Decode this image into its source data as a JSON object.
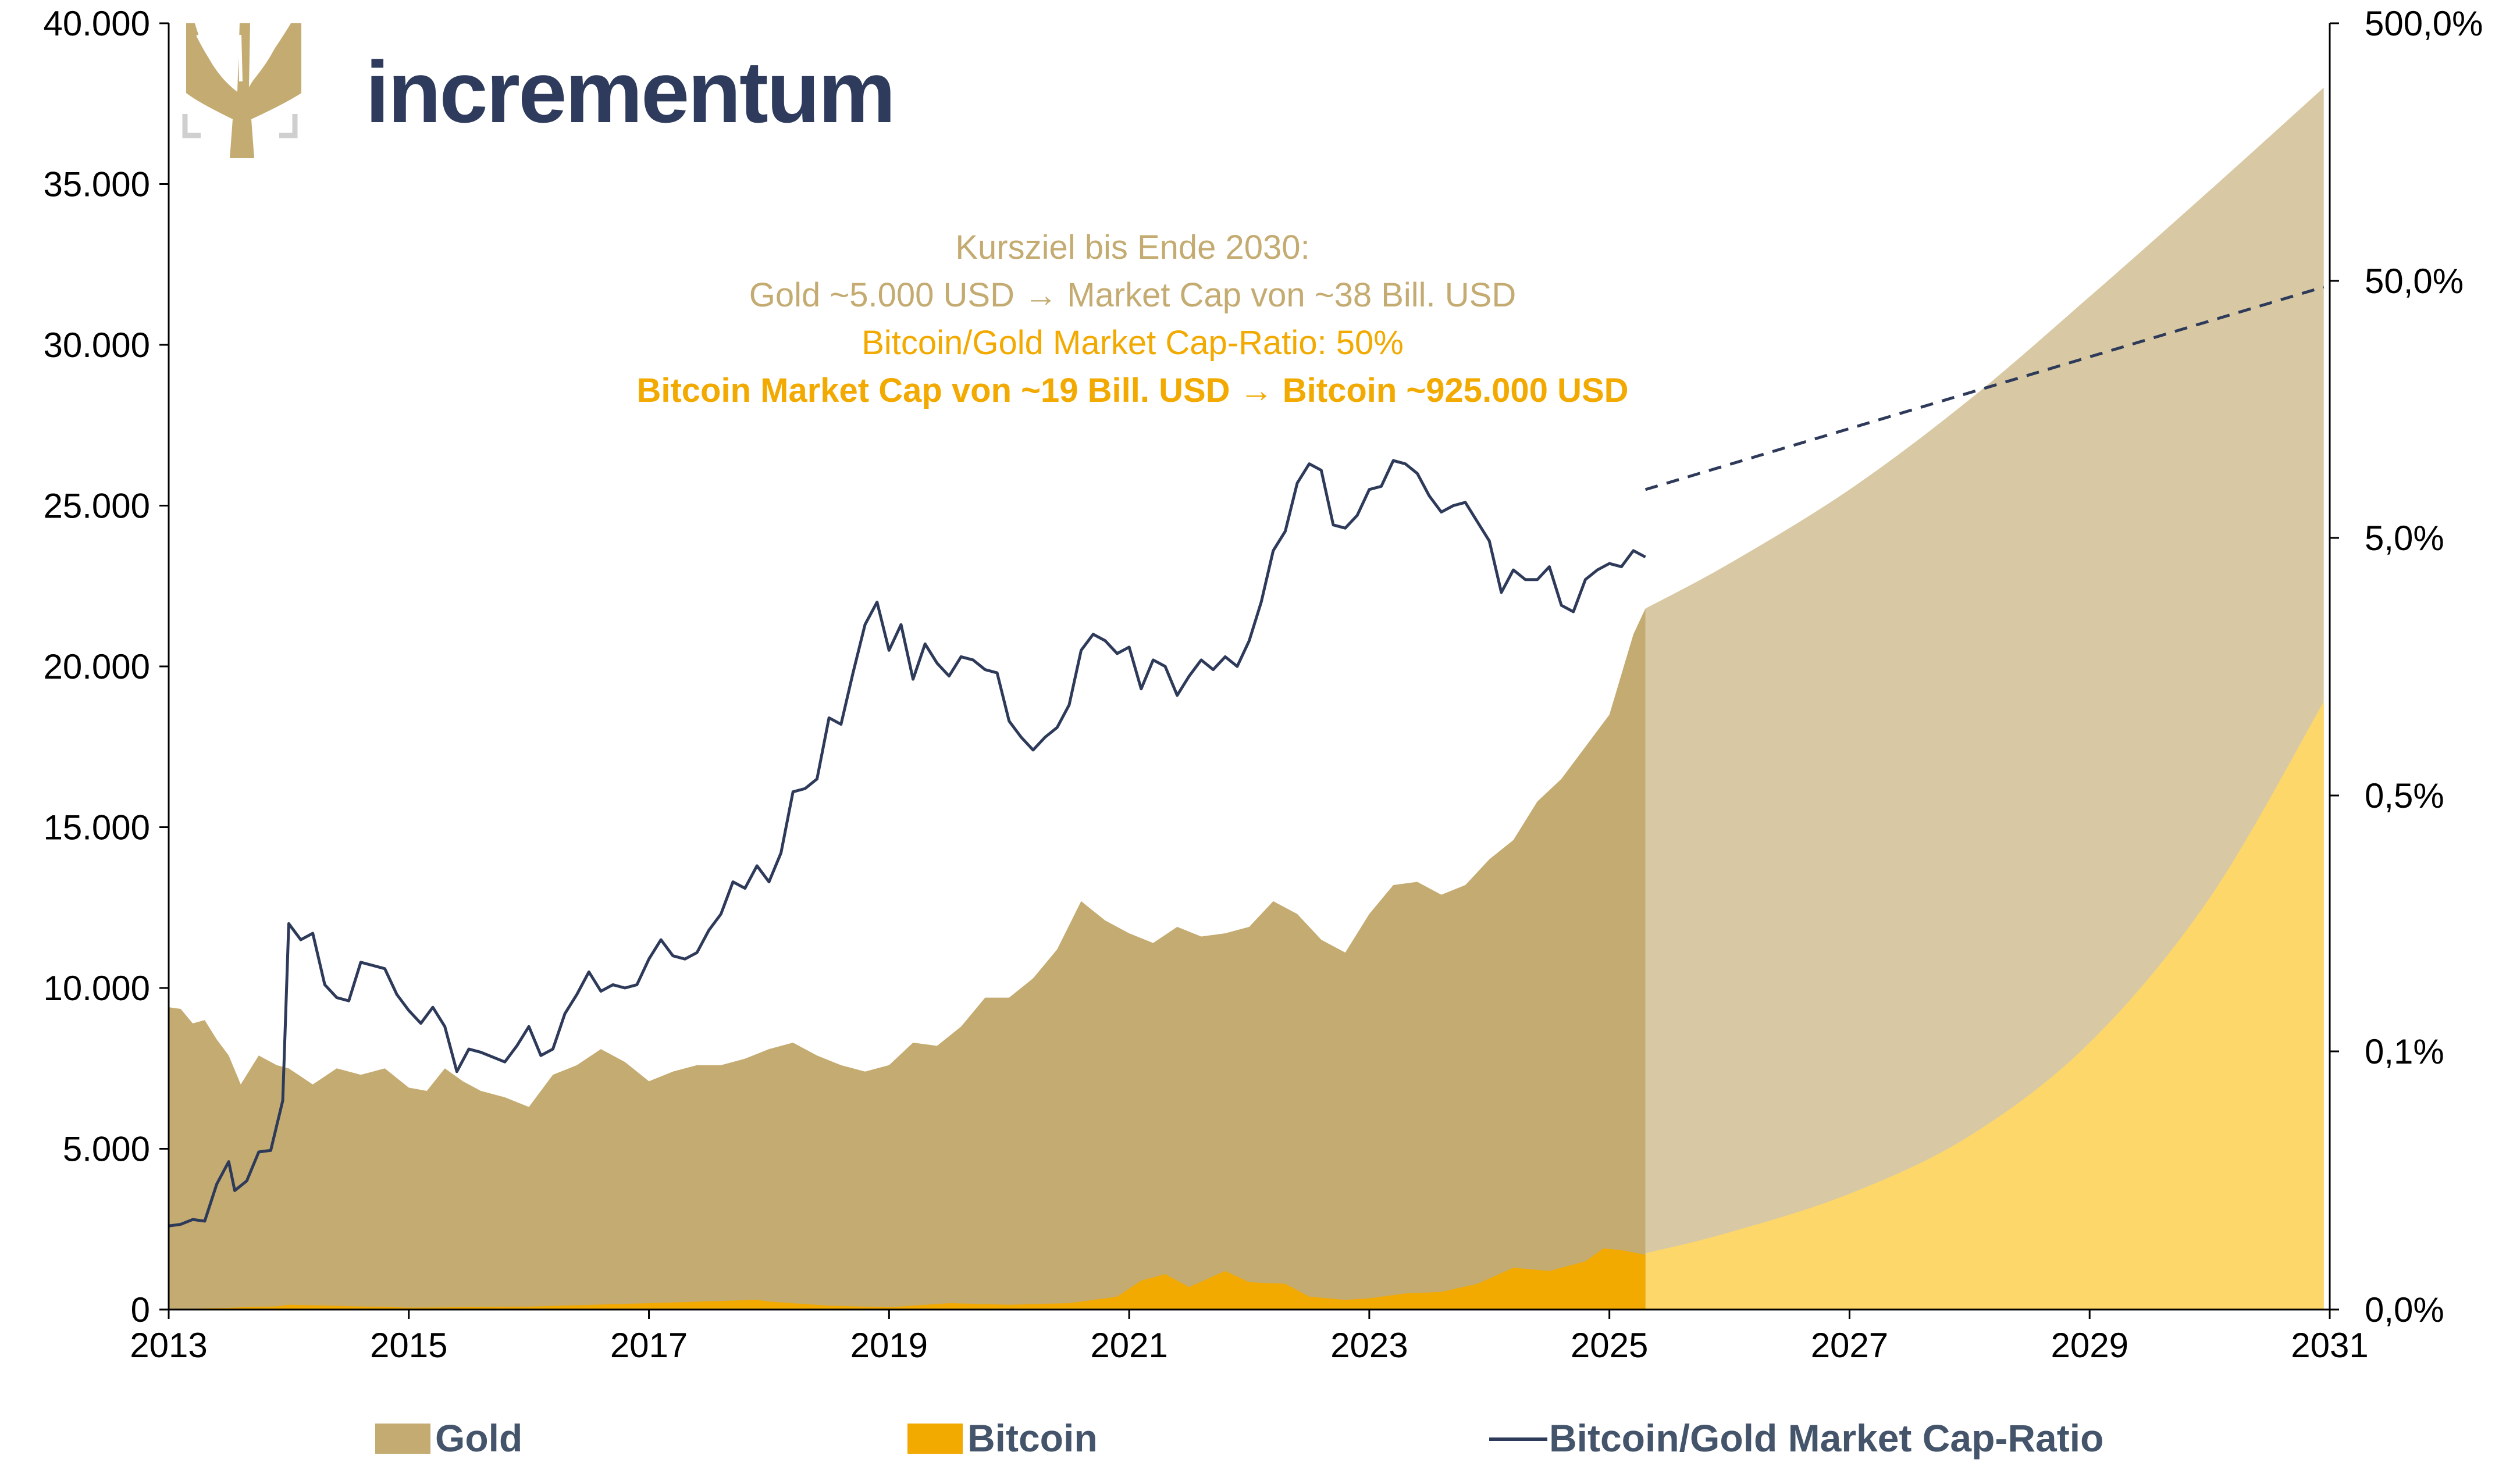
{
  "logo": {
    "text": "incrementum"
  },
  "colors": {
    "gold": "#c4ab71",
    "gold_forecast": "#d8c9a4",
    "bitcoin": "#f2a900",
    "bitcoin_forecast": "#fdd76a",
    "ratio": "#2e3a59",
    "annotation_gold": "#c4ab71",
    "annotation_bitcoin": "#f2a900",
    "legend_text": "#44546a"
  },
  "annotation": {
    "line1": "Kursziel bis Ende 2030:",
    "line2": "Gold ~5.000 USD → Market Cap von ~38 Bill. USD",
    "line3": "Bitcoin/Gold Market Cap-Ratio: 50%",
    "line4": "Bitcoin Market Cap von ~19 Bill. USD → Bitcoin ~925.000 USD"
  },
  "legend": {
    "gold": "Gold",
    "bitcoin": "Bitcoin",
    "ratio": "Bitcoin/Gold Market Cap-Ratio"
  },
  "chart_data": {
    "type": "area",
    "x_axis": {
      "min": 2013,
      "max": 2031,
      "ticks": [
        "2013",
        "2015",
        "2017",
        "2019",
        "2021",
        "2023",
        "2025",
        "2027",
        "2029",
        "2031"
      ]
    },
    "y_left": {
      "min": 0,
      "max": 40000,
      "ticks": [
        "0",
        "5.000",
        "10.000",
        "15.000",
        "20.000",
        "25.000",
        "30.000",
        "35.000",
        "40.000"
      ]
    },
    "y_right": {
      "scale": "log",
      "ticks": [
        "0,0%",
        "0,1%",
        "0,5%",
        "5,0%",
        "50,0%",
        "500,0%"
      ]
    },
    "forecast_start": 2025.3,
    "series": [
      {
        "name": "Gold",
        "axis": "left",
        "points": [
          [
            2013.0,
            9400
          ],
          [
            2013.1,
            9350
          ],
          [
            2013.2,
            8900
          ],
          [
            2013.3,
            9000
          ],
          [
            2013.4,
            8400
          ],
          [
            2013.5,
            7900
          ],
          [
            2013.6,
            7000
          ],
          [
            2013.75,
            7900
          ],
          [
            2013.9,
            7600
          ],
          [
            2014.0,
            7500
          ],
          [
            2014.2,
            7000
          ],
          [
            2014.4,
            7500
          ],
          [
            2014.6,
            7300
          ],
          [
            2014.8,
            7500
          ],
          [
            2015.0,
            6900
          ],
          [
            2015.15,
            6800
          ],
          [
            2015.3,
            7500
          ],
          [
            2015.45,
            7100
          ],
          [
            2015.6,
            6800
          ],
          [
            2015.8,
            6600
          ],
          [
            2016.0,
            6300
          ],
          [
            2016.2,
            7300
          ],
          [
            2016.4,
            7600
          ],
          [
            2016.6,
            8100
          ],
          [
            2016.8,
            7700
          ],
          [
            2017.0,
            7100
          ],
          [
            2017.2,
            7400
          ],
          [
            2017.4,
            7600
          ],
          [
            2017.6,
            7600
          ],
          [
            2017.8,
            7800
          ],
          [
            2018.0,
            8100
          ],
          [
            2018.2,
            8300
          ],
          [
            2018.4,
            7900
          ],
          [
            2018.6,
            7600
          ],
          [
            2018.8,
            7400
          ],
          [
            2019.0,
            7600
          ],
          [
            2019.2,
            8300
          ],
          [
            2019.4,
            8200
          ],
          [
            2019.6,
            8800
          ],
          [
            2019.8,
            9700
          ],
          [
            2020.0,
            9700
          ],
          [
            2020.2,
            10300
          ],
          [
            2020.4,
            11200
          ],
          [
            2020.6,
            12700
          ],
          [
            2020.8,
            12100
          ],
          [
            2021.0,
            11700
          ],
          [
            2021.2,
            11400
          ],
          [
            2021.4,
            11900
          ],
          [
            2021.6,
            11600
          ],
          [
            2021.8,
            11700
          ],
          [
            2022.0,
            11900
          ],
          [
            2022.2,
            12700
          ],
          [
            2022.4,
            12300
          ],
          [
            2022.6,
            11500
          ],
          [
            2022.8,
            11100
          ],
          [
            2023.0,
            12300
          ],
          [
            2023.2,
            13200
          ],
          [
            2023.4,
            13300
          ],
          [
            2023.6,
            12900
          ],
          [
            2023.8,
            13200
          ],
          [
            2024.0,
            14000
          ],
          [
            2024.2,
            14600
          ],
          [
            2024.4,
            15800
          ],
          [
            2024.6,
            16500
          ],
          [
            2024.8,
            17500
          ],
          [
            2025.0,
            18500
          ],
          [
            2025.2,
            21000
          ],
          [
            2025.3,
            21800
          ]
        ]
      },
      {
        "name": "Bitcoin",
        "axis": "left",
        "points": [
          [
            2013.0,
            0
          ],
          [
            2013.9,
            100
          ],
          [
            2014.0,
            150
          ],
          [
            2015.0,
            60
          ],
          [
            2016.0,
            90
          ],
          [
            2017.0,
            200
          ],
          [
            2017.9,
            300
          ],
          [
            2018.0,
            250
          ],
          [
            2018.5,
            120
          ],
          [
            2019.0,
            70
          ],
          [
            2019.5,
            200
          ],
          [
            2020.0,
            150
          ],
          [
            2020.5,
            200
          ],
          [
            2020.9,
            400
          ],
          [
            2021.1,
            900
          ],
          [
            2021.3,
            1100
          ],
          [
            2021.5,
            700
          ],
          [
            2021.8,
            1200
          ],
          [
            2022.0,
            850
          ],
          [
            2022.3,
            800
          ],
          [
            2022.5,
            400
          ],
          [
            2022.8,
            300
          ],
          [
            2023.0,
            350
          ],
          [
            2023.3,
            500
          ],
          [
            2023.6,
            550
          ],
          [
            2023.9,
            800
          ],
          [
            2024.2,
            1300
          ],
          [
            2024.5,
            1200
          ],
          [
            2024.8,
            1500
          ],
          [
            2024.95,
            1900
          ],
          [
            2025.1,
            1850
          ],
          [
            2025.3,
            1700
          ]
        ]
      },
      {
        "name": "Gold Forecast",
        "axis": "left",
        "points": [
          [
            2025.3,
            21800
          ],
          [
            2026.0,
            23200
          ],
          [
            2027.0,
            25500
          ],
          [
            2028.0,
            28300
          ],
          [
            2029.0,
            31500
          ],
          [
            2030.0,
            34800
          ],
          [
            2030.95,
            38000
          ]
        ]
      },
      {
        "name": "Bitcoin Forecast",
        "axis": "left",
        "points": [
          [
            2025.3,
            1750
          ],
          [
            2026.0,
            2400
          ],
          [
            2027.0,
            3600
          ],
          [
            2028.0,
            5400
          ],
          [
            2029.0,
            8300
          ],
          [
            2030.0,
            12800
          ],
          [
            2030.95,
            18900
          ]
        ]
      },
      {
        "name": "Bitcoin/Gold Market Cap-Ratio",
        "axis": "right",
        "points": [
          [
            2013.0,
            2600
          ],
          [
            2013.1,
            2650
          ],
          [
            2013.2,
            2800
          ],
          [
            2013.3,
            2750
          ],
          [
            2013.4,
            3900
          ],
          [
            2013.5,
            4600
          ],
          [
            2013.55,
            3700
          ],
          [
            2013.65,
            4000
          ],
          [
            2013.75,
            4900
          ],
          [
            2013.85,
            4950
          ],
          [
            2013.95,
            6500
          ],
          [
            2014.0,
            12000
          ],
          [
            2014.1,
            11500
          ],
          [
            2014.2,
            11700
          ],
          [
            2014.3,
            10100
          ],
          [
            2014.4,
            9700
          ],
          [
            2014.5,
            9600
          ],
          [
            2014.6,
            10800
          ],
          [
            2014.8,
            10600
          ],
          [
            2014.9,
            9800
          ],
          [
            2015.0,
            9300
          ],
          [
            2015.1,
            8900
          ],
          [
            2015.2,
            9400
          ],
          [
            2015.3,
            8800
          ],
          [
            2015.4,
            7400
          ],
          [
            2015.5,
            8100
          ],
          [
            2015.6,
            8000
          ],
          [
            2015.8,
            7700
          ],
          [
            2015.9,
            8200
          ],
          [
            2016.0,
            8800
          ],
          [
            2016.1,
            7900
          ],
          [
            2016.2,
            8100
          ],
          [
            2016.3,
            9200
          ],
          [
            2016.4,
            9800
          ],
          [
            2016.5,
            10500
          ],
          [
            2016.6,
            9900
          ],
          [
            2016.7,
            10100
          ],
          [
            2016.8,
            10000
          ],
          [
            2016.9,
            10100
          ],
          [
            2017.0,
            10900
          ],
          [
            2017.1,
            11500
          ],
          [
            2017.2,
            11000
          ],
          [
            2017.3,
            10900
          ],
          [
            2017.4,
            11100
          ],
          [
            2017.5,
            11800
          ],
          [
            2017.6,
            12300
          ],
          [
            2017.7,
            13300
          ],
          [
            2017.8,
            13100
          ],
          [
            2017.9,
            13800
          ],
          [
            2018.0,
            13300
          ],
          [
            2018.1,
            14200
          ],
          [
            2018.2,
            16100
          ],
          [
            2018.3,
            16200
          ],
          [
            2018.4,
            16500
          ],
          [
            2018.5,
            18400
          ],
          [
            2018.6,
            18200
          ],
          [
            2018.7,
            19800
          ],
          [
            2018.8,
            21300
          ],
          [
            2018.9,
            22000
          ],
          [
            2019.0,
            20500
          ],
          [
            2019.1,
            21300
          ],
          [
            2019.2,
            19600
          ],
          [
            2019.3,
            20700
          ],
          [
            2019.4,
            20100
          ],
          [
            2019.5,
            19700
          ],
          [
            2019.6,
            20300
          ],
          [
            2019.7,
            20200
          ],
          [
            2019.8,
            19900
          ],
          [
            2019.9,
            19800
          ],
          [
            2020.0,
            18300
          ],
          [
            2020.1,
            17800
          ],
          [
            2020.2,
            17400
          ],
          [
            2020.3,
            17800
          ],
          [
            2020.4,
            18100
          ],
          [
            2020.5,
            18800
          ],
          [
            2020.6,
            20500
          ],
          [
            2020.7,
            21000
          ],
          [
            2020.8,
            20800
          ],
          [
            2020.9,
            20400
          ],
          [
            2021.0,
            20600
          ],
          [
            2021.1,
            19300
          ],
          [
            2021.2,
            20200
          ],
          [
            2021.3,
            20000
          ],
          [
            2021.4,
            19100
          ],
          [
            2021.5,
            19700
          ],
          [
            2021.6,
            20200
          ],
          [
            2021.7,
            19900
          ],
          [
            2021.8,
            20300
          ],
          [
            2021.9,
            20000
          ],
          [
            2022.0,
            20800
          ],
          [
            2022.1,
            22000
          ],
          [
            2022.2,
            23600
          ],
          [
            2022.3,
            24200
          ],
          [
            2022.4,
            25700
          ],
          [
            2022.5,
            26300
          ],
          [
            2022.6,
            26100
          ],
          [
            2022.7,
            24400
          ],
          [
            2022.8,
            24300
          ],
          [
            2022.9,
            24700
          ],
          [
            2023.0,
            25500
          ],
          [
            2023.1,
            25600
          ],
          [
            2023.2,
            26400
          ],
          [
            2023.3,
            26300
          ],
          [
            2023.4,
            26000
          ],
          [
            2023.5,
            25300
          ],
          [
            2023.6,
            24800
          ],
          [
            2023.7,
            25000
          ],
          [
            2023.8,
            25100
          ],
          [
            2023.9,
            24500
          ],
          [
            2024.0,
            23900
          ],
          [
            2024.1,
            22300
          ],
          [
            2024.2,
            23000
          ],
          [
            2024.3,
            22700
          ],
          [
            2024.4,
            22700
          ],
          [
            2024.5,
            23100
          ],
          [
            2024.6,
            21900
          ],
          [
            2024.7,
            21700
          ],
          [
            2024.8,
            22700
          ],
          [
            2024.9,
            23000
          ],
          [
            2025.0,
            23200
          ],
          [
            2025.1,
            23100
          ],
          [
            2025.2,
            23600
          ],
          [
            2025.3,
            23400
          ]
        ]
      },
      {
        "name": "Bitcoin/Gold Market Cap-Ratio Forecast",
        "axis": "right",
        "dashed": true,
        "points": [
          [
            2025.3,
            25500
          ],
          [
            2030.95,
            31800
          ]
        ]
      }
    ]
  }
}
